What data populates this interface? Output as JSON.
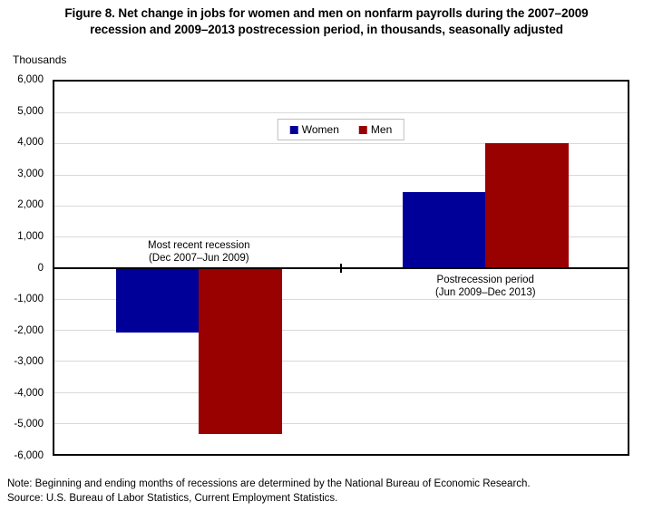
{
  "figure": {
    "title_line1": "Figure 8. Net change in jobs for women and men on nonfarm payrolls during the 2007–2009",
    "title_line2": "recession and 2009–2013 postrecession period, in thousands, seasonally adjusted",
    "units_label": "Thousands",
    "note": "Note: Beginning and ending months of recessions are determined by the National Bureau of Economic Research.",
    "source": "Source: U.S. Bureau of Labor Statistics, Current Employment Statistics."
  },
  "chart_data": {
    "type": "bar",
    "title": "Figure 8. Net change in jobs for women and men on nonfarm payrolls during the 2007–2009 recession and 2009–2013 postrecession period, in thousands, seasonally adjusted",
    "xlabel": "",
    "ylabel": "Thousands",
    "ylim": [
      -6000,
      6000
    ],
    "ytick_interval": 1000,
    "ytick_labels": [
      "6,000",
      "5,000",
      "4,000",
      "3,000",
      "2,000",
      "1,000",
      "0",
      "-1,000",
      "-2,000",
      "-3,000",
      "-4,000",
      "-5,000",
      "-6,000"
    ],
    "grid": true,
    "legend_position": "top-center",
    "categories": [
      "Most recent recession (Dec 2007–Jun 2009)",
      "Postrecession period (Jun 2009–Dec 2013)"
    ],
    "category_label_lines": [
      [
        "Most recent recession",
        "(Dec 2007–Jun 2009)"
      ],
      [
        "Postrecession period",
        "(Jun 2009–Dec 2013)"
      ]
    ],
    "series": [
      {
        "name": "Women",
        "color": "#000099",
        "values": [
          -2100,
          2450
        ]
      },
      {
        "name": "Men",
        "color": "#990000",
        "values": [
          -5350,
          4000
        ]
      }
    ],
    "layout": {
      "group_centers_pct": [
        25.2,
        75.2
      ],
      "bar_width_pct": 14.5
    }
  }
}
